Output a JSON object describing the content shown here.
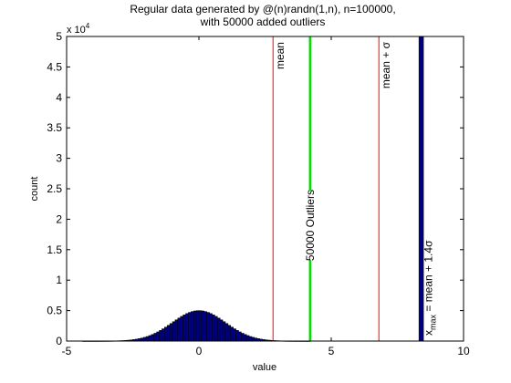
{
  "chart_data": {
    "type": "bar",
    "title_lines": [
      "Regular data generated by @(n)randn(1,n), n=100000,",
      "with 50000 added outliers"
    ],
    "xlabel": "value",
    "ylabel": "count",
    "xlim": [
      -5,
      10
    ],
    "ylim": [
      0,
      50000
    ],
    "y_exponent_label": "x 10",
    "y_exponent_power": "4",
    "x_ticks": [
      {
        "value": -5,
        "label": "-5"
      },
      {
        "value": 0,
        "label": "0"
      },
      {
        "value": 5,
        "label": "5"
      },
      {
        "value": 10,
        "label": "10"
      }
    ],
    "y_ticks": [
      {
        "value": 0,
        "label": "0"
      },
      {
        "value": 5000,
        "label": "0.5"
      },
      {
        "value": 10000,
        "label": "1"
      },
      {
        "value": 15000,
        "label": "1.5"
      },
      {
        "value": 20000,
        "label": "2"
      },
      {
        "value": 25000,
        "label": "2.5"
      },
      {
        "value": 30000,
        "label": "3"
      },
      {
        "value": 35000,
        "label": "3.5"
      },
      {
        "value": 40000,
        "label": "4"
      },
      {
        "value": 45000,
        "label": "4.5"
      },
      {
        "value": 50000,
        "label": "5"
      }
    ],
    "histogram": {
      "mean": 0,
      "std": 1,
      "peak_count": 5000,
      "bin_width": 0.1,
      "x_range": [
        -4.4,
        4.2
      ],
      "fill_color": "#000080",
      "edge_color": "#000000"
    },
    "outlier_bar": {
      "x": 8.4,
      "count": 50000,
      "fill_color": "#000080",
      "edge_color": "#000000"
    },
    "vlines": [
      {
        "x": 2.8,
        "color": "#ff0000",
        "label": "mean",
        "label_main": "mean",
        "label_sub": "",
        "label_greek": "",
        "label_tail": ""
      },
      {
        "x": 6.8,
        "color": "#ff0000",
        "label": "mean + σ",
        "label_main": "mean + ",
        "label_sub": "",
        "label_greek": "σ",
        "label_tail": ""
      },
      {
        "x": 4.2,
        "color": "#00e000",
        "label": "50000 Outliers",
        "label_main": "50000 Outliers",
        "label_sub": "",
        "label_greek": "",
        "label_tail": ""
      },
      {
        "x": 8.4,
        "color": "#000080",
        "label": "x max = mean + 1.4σ",
        "label_main": "x",
        "label_sub": "max",
        "label_greek": "σ",
        "label_tail": " = mean + 1.4"
      }
    ],
    "grid": false,
    "colors": {
      "hist": "#000080",
      "mean_lines": "#ff0000",
      "outlier_line": "#00e000"
    }
  }
}
